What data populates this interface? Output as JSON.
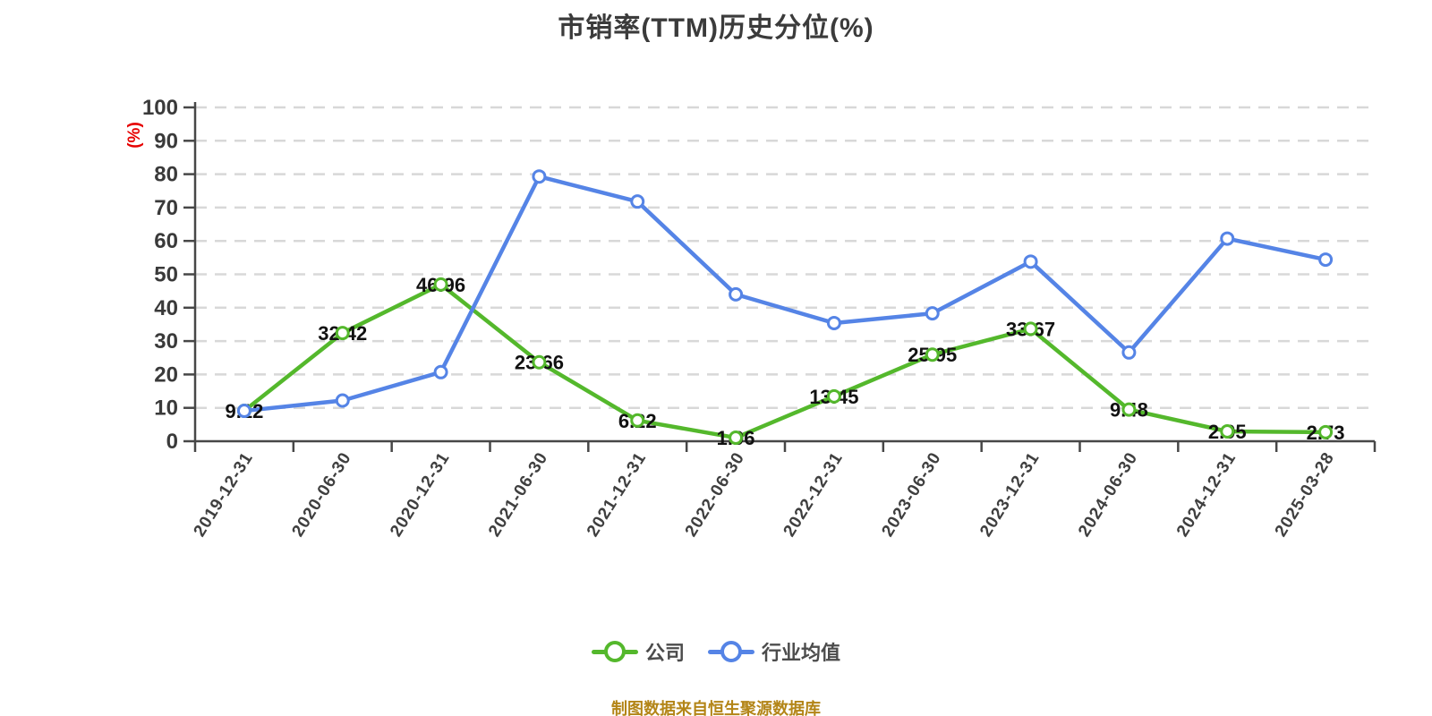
{
  "title": "市销率(TTM)历史分位(%)",
  "y_axis": {
    "unit": "(%)"
  },
  "caption": "制图数据来自恒生聚源数据库",
  "colors": {
    "title": "#3b3b3b",
    "y_unit": "#e60000",
    "caption": "#b38517",
    "axis": "#474747",
    "grid": "#d8d8d8",
    "tick_label": "#3a3a3a",
    "x_label": "#3f3f3f",
    "data_label": "#111111",
    "company_green": "#54b82c",
    "industry_blue": "#5584e6"
  },
  "chart_data": {
    "type": "line",
    "categories": [
      "2019-12-31",
      "2020-06-30",
      "2020-12-31",
      "2021-06-30",
      "2021-12-31",
      "2022-06-30",
      "2022-12-31",
      "2023-06-30",
      "2023-12-31",
      "2024-06-30",
      "2024-12-31",
      "2025-03-28"
    ],
    "series": [
      {
        "name": "公司",
        "color": "#54b82c",
        "show_labels": true,
        "values": [
          9.12,
          32.42,
          46.96,
          23.66,
          6.22,
          1.06,
          13.45,
          25.95,
          33.67,
          9.48,
          2.95,
          2.73
        ],
        "labels": [
          "9.12",
          "32.42",
          "46.96",
          "23.66",
          "6.22",
          "1.06",
          "13.45",
          "25.95",
          "33.67",
          "9.48",
          "2.95",
          "2.73"
        ]
      },
      {
        "name": "行业均值",
        "color": "#5584e6",
        "show_labels": false,
        "values": [
          9.1,
          12.2,
          20.7,
          79.3,
          71.8,
          44.0,
          35.4,
          38.3,
          53.8,
          26.6,
          60.7,
          54.4
        ]
      }
    ],
    "ylim": [
      0,
      100
    ],
    "y_ticks": [
      0,
      10,
      20,
      30,
      40,
      50,
      60,
      70,
      80,
      90,
      100
    ],
    "ylabel": "(%)",
    "xlabel": "",
    "grid": "horizontal-dashed",
    "legend_position": "bottom",
    "x_label_rotation": -58,
    "marker": "circle-white-fill"
  }
}
